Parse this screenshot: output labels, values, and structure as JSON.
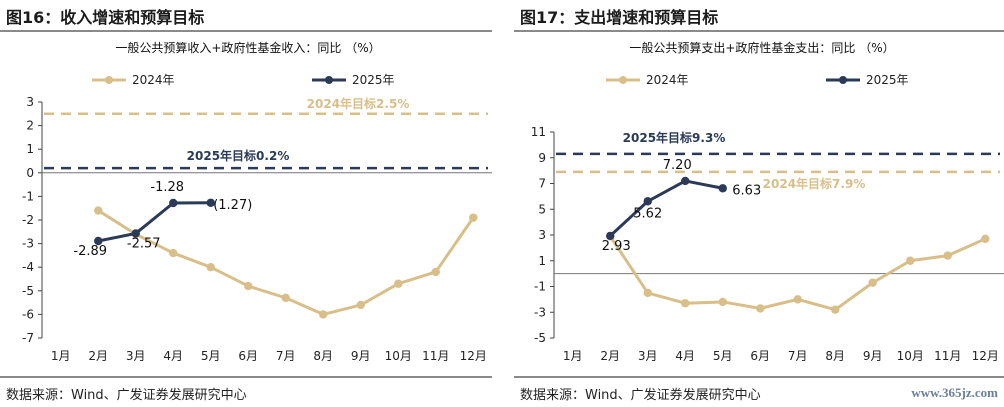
{
  "panels": [
    {
      "fig_label": "图16：收入增速和预算目标",
      "source": "数据来源：Wind、广发证券发展研究中心",
      "chart_data": {
        "type": "line",
        "title": "一般公共预算收入+政府性基金收入：同比 （%）",
        "categories": [
          "1月",
          "2月",
          "3月",
          "4月",
          "5月",
          "6月",
          "7月",
          "8月",
          "9月",
          "10月",
          "11月",
          "12月"
        ],
        "ylim": [
          -7,
          3
        ],
        "yticks": [
          3,
          2,
          1,
          0,
          -1,
          -2,
          -3,
          -4,
          -5,
          -6,
          -7
        ],
        "series": [
          {
            "name": "2024年",
            "color": "#d8bf8a",
            "values": [
              null,
              -1.6,
              -2.6,
              -3.4,
              -4.0,
              -4.8,
              -5.3,
              -6.0,
              -5.6,
              -4.7,
              -4.2,
              -1.9
            ]
          },
          {
            "name": "2025年",
            "color": "#2a3a57",
            "values": [
              null,
              -2.89,
              -2.57,
              -1.28,
              -1.27,
              null,
              null,
              null,
              null,
              null,
              null,
              null
            ]
          }
        ],
        "data_labels": [
          {
            "text": "-2.89",
            "series": 1,
            "index": 1
          },
          {
            "text": "-2.57",
            "series": 1,
            "index": 2
          },
          {
            "text": "-1.28",
            "series": 1,
            "index": 3
          },
          {
            "text": "(1.27)",
            "series": 1,
            "index": 4
          }
        ],
        "reference_lines": [
          {
            "value": 2.5,
            "label": "2024年目标2.5%",
            "color": "#d8bf8a"
          },
          {
            "value": 0.2,
            "label": "2025年目标0.2%",
            "color": "#2a3a57"
          }
        ]
      }
    },
    {
      "fig_label": "图17：支出增速和预算目标",
      "source": "数据来源：Wind、广发证券发展研究中心",
      "watermark": "www.365jz.com",
      "chart_data": {
        "type": "line",
        "title": "一般公共预算支出+政府性基金支出：同比 （%）",
        "categories": [
          "1月",
          "2月",
          "3月",
          "4月",
          "5月",
          "6月",
          "7月",
          "8月",
          "9月",
          "10月",
          "11月",
          "12月"
        ],
        "ylim": [
          -5,
          11
        ],
        "yticks": [
          11,
          9,
          7,
          5,
          3,
          1,
          -1,
          -3,
          -5
        ],
        "series": [
          {
            "name": "2024年",
            "color": "#d8bf8a",
            "values": [
              null,
              2.9,
              -1.5,
              -2.3,
              -2.2,
              -2.7,
              -2.0,
              -2.8,
              -0.7,
              1.0,
              1.4,
              2.7
            ]
          },
          {
            "name": "2025年",
            "color": "#2a3a57",
            "values": [
              null,
              2.93,
              5.62,
              7.2,
              6.63,
              null,
              null,
              null,
              null,
              null,
              null,
              null
            ]
          }
        ],
        "data_labels": [
          {
            "text": "2.93",
            "series": 1,
            "index": 1
          },
          {
            "text": "5.62",
            "series": 1,
            "index": 2
          },
          {
            "text": "7.20",
            "series": 1,
            "index": 3
          },
          {
            "text": "6.63",
            "series": 1,
            "index": 4
          }
        ],
        "reference_lines": [
          {
            "value": 9.3,
            "label": "2025年目标9.3%",
            "color": "#2a3a57"
          },
          {
            "value": 7.9,
            "label": "2024年目标7.9%",
            "color": "#d8bf8a"
          }
        ]
      }
    }
  ]
}
